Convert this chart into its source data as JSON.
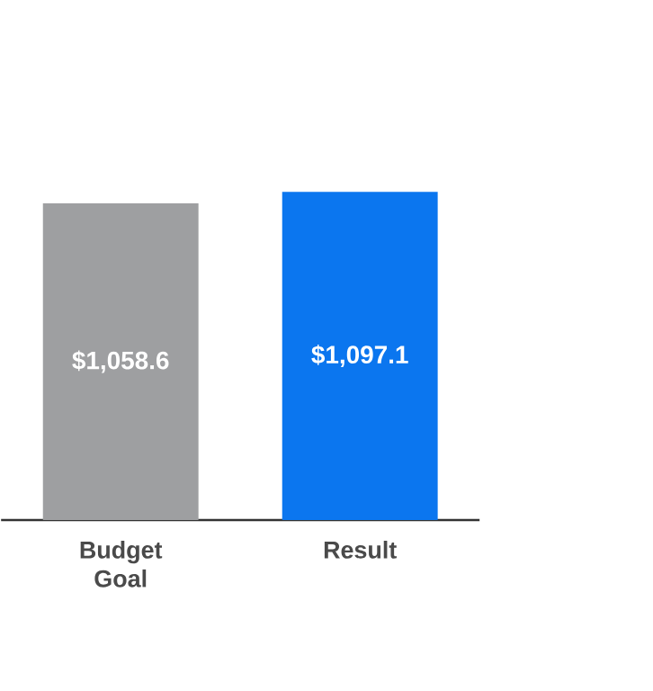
{
  "chart_data": {
    "type": "bar",
    "categories": [
      "Budget Goal",
      "Result"
    ],
    "values": [
      1058.6,
      1097.1
    ],
    "colors": [
      "#9e9fa1",
      "#0b76ef"
    ],
    "value_labels": [
      "$1,058.6",
      "$1,097.1"
    ],
    "tick_labels": "x"
  }
}
